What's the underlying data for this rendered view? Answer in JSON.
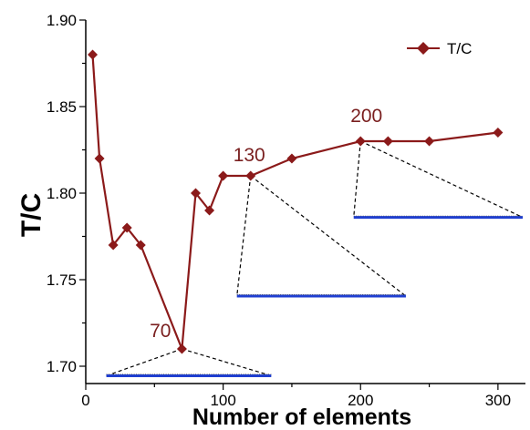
{
  "chart_data": {
    "type": "line",
    "xlabel": "Number of elements",
    "ylabel": "T/C",
    "xlim": [
      0,
      320
    ],
    "ylim": [
      1.69,
      1.9
    ],
    "xticks": [
      0,
      100,
      200,
      300
    ],
    "yticks": [
      1.7,
      1.75,
      1.8,
      1.85,
      1.9
    ],
    "ytick_labels": [
      "1.70",
      "1.75",
      "1.80",
      "1.85",
      "1.90"
    ],
    "grid": false,
    "legend_position": "top-right",
    "series": [
      {
        "name": "T/C",
        "color": "#8b1a1a",
        "marker": "diamond",
        "x": [
          5,
          10,
          20,
          30,
          40,
          70,
          80,
          90,
          100,
          120,
          150,
          200,
          220,
          250,
          300
        ],
        "y": [
          1.88,
          1.82,
          1.77,
          1.78,
          1.77,
          1.71,
          1.8,
          1.79,
          1.81,
          1.81,
          1.82,
          1.83,
          1.83,
          1.83,
          1.835
        ]
      }
    ],
    "annotations": [
      {
        "label": "70",
        "x": 70,
        "y": 1.71,
        "bar_x": [
          15,
          135
        ],
        "bar_y": 1.6945
      },
      {
        "label": "130",
        "x": 120,
        "y": 1.81,
        "bar_x": [
          110,
          233
        ],
        "bar_y": 1.7405
      },
      {
        "label": "200",
        "x": 200,
        "y": 1.83,
        "bar_x": [
          195,
          318
        ],
        "bar_y": 1.786
      }
    ]
  }
}
